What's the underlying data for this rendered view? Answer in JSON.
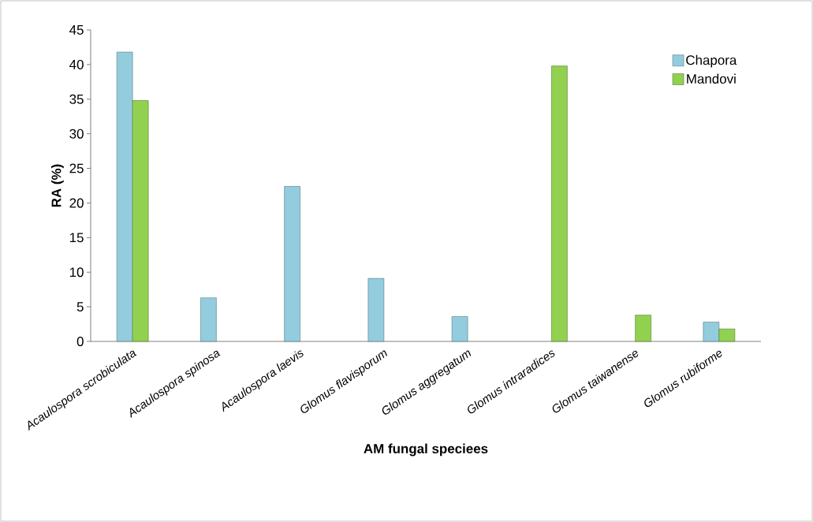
{
  "chart_data": {
    "type": "bar",
    "xlabel": "AM fungal speciees",
    "ylabel": "RA (%)",
    "categories": [
      "Acaulospora  scrobiculata",
      "Acaulospora  spinosa",
      "Acaulospora  laevis",
      "Glomus flavisporum",
      "Glomus aggregatum",
      "Glomus intraradices",
      "Glomus taiwanense",
      "Glomus rubiforme"
    ],
    "series": [
      {
        "name": "Chapora",
        "color": "#93cddd",
        "values": [
          41.8,
          6.3,
          22.4,
          9.1,
          3.6,
          null,
          null,
          2.8
        ]
      },
      {
        "name": "Mandovi",
        "color": "#92d050",
        "values": [
          34.8,
          null,
          null,
          null,
          null,
          39.8,
          3.8,
          1.8
        ]
      }
    ],
    "ylim": [
      0,
      45
    ],
    "yticks": [
      0,
      5,
      10,
      15,
      20,
      25,
      30,
      35,
      40,
      45
    ],
    "legend": "top right"
  }
}
